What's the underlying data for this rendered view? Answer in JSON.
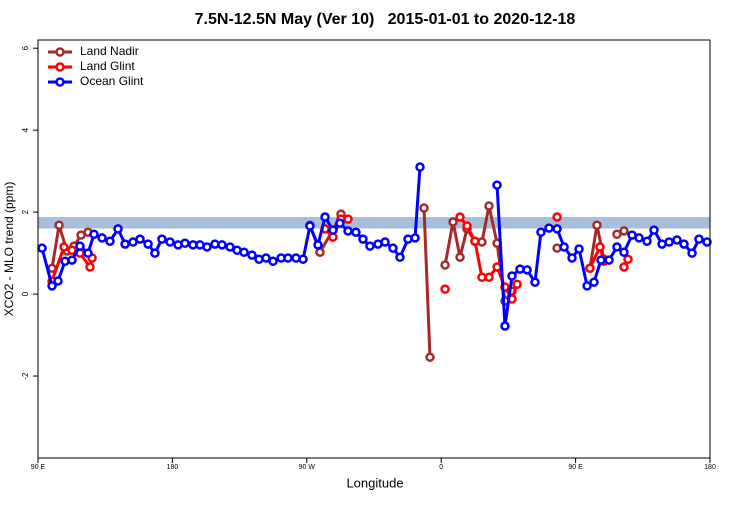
{
  "chart_data": {
    "type": "line",
    "title": "7.5N-12.5N May (Ver 10)   2015-01-01 to 2020-12-18",
    "x_label": "Longitude",
    "y_label": "XCO2 - MLO trend (ppm)",
    "xlim": [
      90,
      540
    ],
    "xticks": [
      {
        "value": 90,
        "label": "90 E"
      },
      {
        "value": 180,
        "label": "180"
      },
      {
        "value": 270,
        "label": "90 W"
      },
      {
        "value": 360,
        "label": "0"
      },
      {
        "value": 450,
        "label": "90 E"
      },
      {
        "value": 540,
        "label": "180"
      }
    ],
    "ylim": [
      -4,
      6.2
    ],
    "yticks": [
      -2,
      0,
      2,
      4,
      6
    ],
    "band": [
      1.6,
      1.88
    ],
    "band_color": "#a8bfdc",
    "legend": "top-left",
    "series": [
      {
        "name": "Land Nadir",
        "color": "#a52a2a",
        "x": [
          99.4,
          104.1,
          109.4,
          114.1,
          118.8,
          123.5,
          200,
          272.1,
          278.8,
          287.5,
          292.9,
          330,
          348.5,
          352.5,
          355,
          362.6,
          367.9,
          372.6,
          377.3,
          382.6,
          387.3,
          392,
          397.4,
          402.7,
          407.4,
          430,
          437.6,
          450,
          459.6,
          464.3,
          469,
          475,
          477.7,
          482.4
        ],
        "values": [
          0.63,
          1.68,
          1.05,
          1.17,
          1.44,
          1.51,
          null,
          1.68,
          1.02,
          1.56,
          1.95,
          null,
          2.1,
          -1.54,
          null,
          0.71,
          1.76,
          0.9,
          1.59,
          1.29,
          1.27,
          2.15,
          1.24,
          -0.17,
          0.07,
          null,
          1.12,
          null,
          0.63,
          1.68,
          0.85,
          null,
          1.46,
          1.54
        ]
      },
      {
        "name": "Land Glint",
        "color": "#ff0000",
        "x": [
          99.4,
          107.4,
          112.8,
          118.1,
          124.8,
          126.2,
          200,
          282.2,
          287.5,
          292.9,
          297.6,
          330,
          362.6,
          365,
          372.6,
          377.3,
          382.6,
          387.3,
          392,
          397.4,
          402.7,
          407.4,
          410.8,
          430,
          437.6,
          450,
          459.6,
          466.3,
          469,
          475,
          482.4,
          485.1
        ],
        "values": [
          0.32,
          1.15,
          1.07,
          1.0,
          0.66,
          0.88,
          null,
          1.59,
          1.39,
          1.83,
          1.83,
          null,
          0.12,
          null,
          1.88,
          1.66,
          1.29,
          0.41,
          0.41,
          0.66,
          0.17,
          -0.12,
          0.24,
          null,
          1.88,
          null,
          0.63,
          1.15,
          0.8,
          null,
          0.66,
          0.85
        ]
      },
      {
        "name": "Ocean Glint",
        "color": "#0000ff",
        "x": [
          92.7,
          99.4,
          103.4,
          108.1,
          112.8,
          118.1,
          123.5,
          127.5,
          132.9,
          138.2,
          143.6,
          148.3,
          153.6,
          158.3,
          163.7,
          168.3,
          173,
          178.4,
          183.8,
          188.4,
          193.8,
          198.5,
          203.2,
          208.5,
          213.2,
          218.6,
          223.3,
          228,
          233.3,
          238,
          242.7,
          247.4,
          252.8,
          257.4,
          262.8,
          267.5,
          272.1,
          277.5,
          282.2,
          287.5,
          292.2,
          297.6,
          302.9,
          307.6,
          312.3,
          317.7,
          322.4,
          327.7,
          332.4,
          337.8,
          342.5,
          345.8,
          370,
          397.4,
          402.7,
          407.4,
          412.8,
          417.5,
          422.8,
          426.8,
          432.2,
          437.6,
          442.3,
          447.6,
          452.3,
          457.7,
          462.3,
          467,
          472.4,
          477.7,
          482.4,
          487.8,
          492.5,
          497.8,
          502.5,
          507.9,
          512.6,
          517.9,
          522.6,
          528,
          532.6,
          538
        ],
        "values": [
          1.12,
          0.2,
          0.32,
          0.8,
          0.83,
          1.17,
          1.0,
          1.46,
          1.37,
          1.29,
          1.59,
          1.22,
          1.27,
          1.34,
          1.22,
          1.0,
          1.34,
          1.27,
          1.2,
          1.24,
          1.2,
          1.2,
          1.15,
          1.22,
          1.2,
          1.15,
          1.07,
          1.02,
          0.95,
          0.85,
          0.88,
          0.8,
          0.88,
          0.88,
          0.88,
          0.85,
          1.66,
          1.2,
          1.88,
          1.56,
          1.73,
          1.54,
          1.51,
          1.34,
          1.17,
          1.22,
          1.27,
          1.12,
          0.9,
          1.34,
          1.37,
          3.1,
          null,
          2.66,
          -0.78,
          0.44,
          0.61,
          0.59,
          0.29,
          1.51,
          1.61,
          1.59,
          1.15,
          0.88,
          1.1,
          0.2,
          0.29,
          0.83,
          0.83,
          1.15,
          1.02,
          1.44,
          1.37,
          1.29,
          1.56,
          1.22,
          1.27,
          1.32,
          1.22,
          1.0,
          1.34,
          1.27
        ]
      }
    ]
  }
}
